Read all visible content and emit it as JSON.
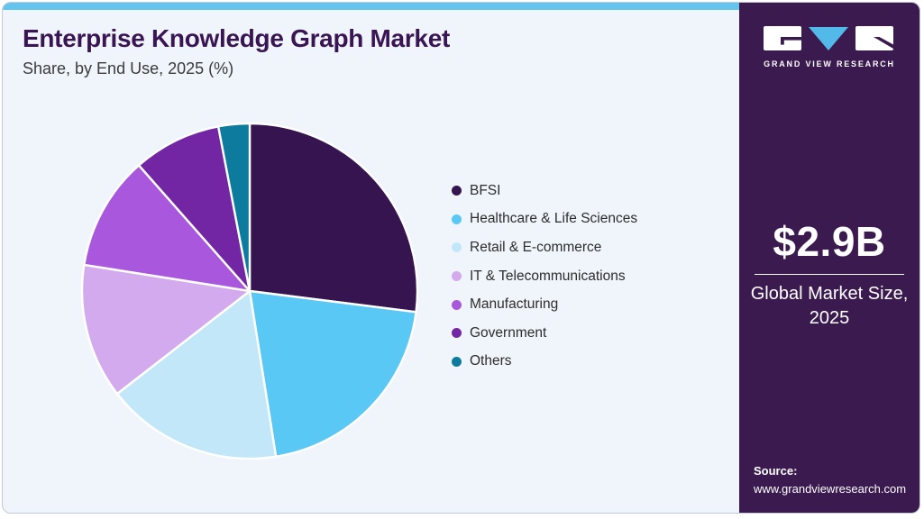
{
  "header": {
    "title": "Enterprise Knowledge Graph Market",
    "subtitle": "Share, by End Use, 2025 (%)"
  },
  "chart_data": {
    "type": "pie",
    "title": "Enterprise Knowledge Graph Market Share, by End Use, 2025 (%)",
    "unit": "%",
    "start_angle_deg": 0,
    "direction": "clockwise",
    "legend_position": "right",
    "value_labels_shown": false,
    "slices": [
      {
        "label": "BFSI",
        "value": 27,
        "color": "#361450"
      },
      {
        "label": "Healthcare & Life Sciences",
        "value": 20.5,
        "color": "#5ac8f5"
      },
      {
        "label": "Retail & E-commerce",
        "value": 17,
        "color": "#c2e7f9"
      },
      {
        "label": "IT & Telecommunications",
        "value": 13,
        "color": "#d3aaed"
      },
      {
        "label": "Manufacturing",
        "value": 11,
        "color": "#a958dd"
      },
      {
        "label": "Government",
        "value": 8.5,
        "color": "#7226a3"
      },
      {
        "label": "Others",
        "value": 3,
        "color": "#0c7b9e"
      }
    ]
  },
  "sidebar": {
    "brand_name": "GRAND VIEW RESEARCH",
    "market_size": {
      "value": "$2.9B",
      "label": "Global Market Size, 2025"
    },
    "source": {
      "label": "Source:",
      "url": "www.grandviewresearch.com"
    }
  },
  "colors": {
    "accent_bar": "#63c4ee",
    "card_bg": "#eff5fa",
    "sidebar_bg": "#3a1a4f",
    "title_text": "#3a1553",
    "logo_blue": "#52b9e9",
    "slice_separator": "#ffffff"
  }
}
